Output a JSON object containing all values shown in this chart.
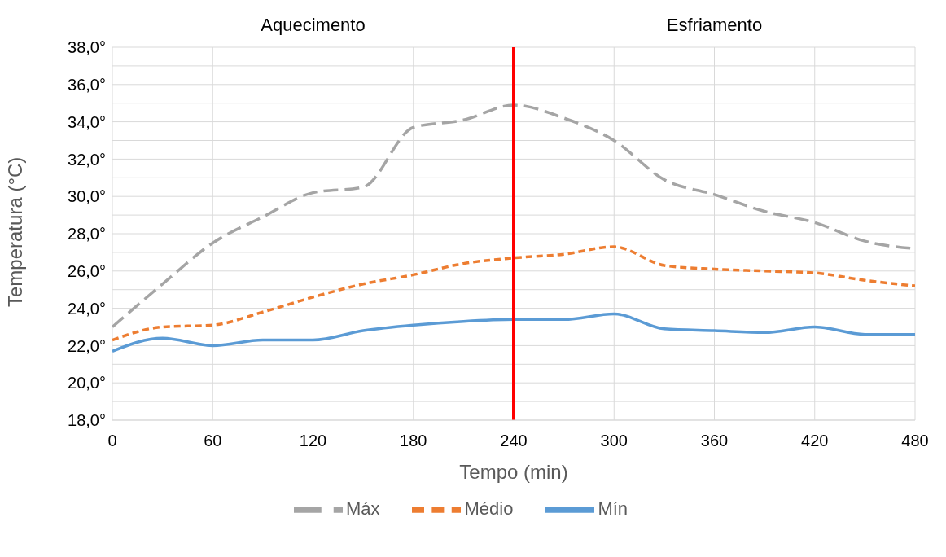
{
  "chart_data": {
    "type": "line",
    "xlabel": "Tempo (min)",
    "ylabel": "Temperatura (°C)",
    "annotations": [
      "Aquecimento",
      "Esfriamento"
    ],
    "x": [
      0,
      30,
      60,
      90,
      120,
      150,
      180,
      210,
      240,
      270,
      300,
      330,
      360,
      390,
      420,
      450,
      480
    ],
    "series": [
      {
        "name": "Mín",
        "color": "#5b9bd5",
        "line_style": "solid",
        "values": [
          21.7,
          22.4,
          22.0,
          22.3,
          22.3,
          22.8,
          23.1,
          23.3,
          23.4,
          23.4,
          23.7,
          22.9,
          22.8,
          22.7,
          23.0,
          22.6,
          22.6
        ]
      },
      {
        "name": "Médio",
        "color": "#ed7d31",
        "line_style": "dotted",
        "values": [
          22.3,
          23.0,
          23.1,
          23.8,
          24.6,
          25.3,
          25.8,
          26.4,
          26.7,
          26.9,
          27.3,
          26.3,
          26.1,
          26.0,
          25.9,
          25.5,
          25.2
        ]
      },
      {
        "name": "Máx",
        "color": "#a5a5a5",
        "line_style": "dashed",
        "values": [
          23.0,
          25.3,
          27.5,
          28.9,
          30.2,
          30.5,
          33.7,
          34.1,
          34.9,
          34.2,
          33.0,
          30.9,
          30.1,
          29.2,
          28.6,
          27.6,
          27.2
        ]
      }
    ],
    "xlim": [
      0,
      480
    ],
    "xticks": [
      0,
      60,
      120,
      180,
      240,
      300,
      360,
      420,
      480
    ],
    "ylim": [
      18,
      38
    ],
    "yticks": [
      {
        "value": 18,
        "label": "18,0°"
      },
      {
        "value": 19,
        "label": null
      },
      {
        "value": 20,
        "label": "20,0°"
      },
      {
        "value": 21,
        "label": null
      },
      {
        "value": 22,
        "label": "22,0°"
      },
      {
        "value": 23,
        "label": null
      },
      {
        "value": 24,
        "label": "24,0°"
      },
      {
        "value": 25,
        "label": null
      },
      {
        "value": 26,
        "label": "26,0°"
      },
      {
        "value": 27,
        "label": null
      },
      {
        "value": 28,
        "label": "28,0°"
      },
      {
        "value": 29,
        "label": null
      },
      {
        "value": 30,
        "label": "30,0°"
      },
      {
        "value": 31,
        "label": null
      },
      {
        "value": 32,
        "label": "32,0°"
      },
      {
        "value": 33,
        "label": null
      },
      {
        "value": 34,
        "label": "34,0°"
      },
      {
        "value": 35,
        "label": null
      },
      {
        "value": 36,
        "label": "36,0°"
      },
      {
        "value": 37,
        "label": null
      },
      {
        "value": 38,
        "label": "38,0°"
      }
    ],
    "ref_lines": [
      {
        "axis": "x",
        "value": 240,
        "label": null,
        "color": "#ff0000",
        "line_style": "solid"
      }
    ],
    "grid": true,
    "legend": "bottom"
  }
}
